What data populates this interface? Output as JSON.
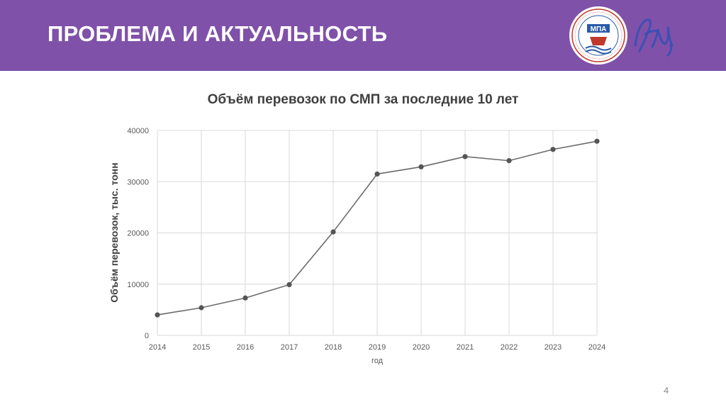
{
  "header": {
    "title": "ПРОБЛЕМА И АКТУАЛЬНОСТЬ",
    "logo_text": "МПА",
    "colors": {
      "background": "#7f51a8",
      "title": "#ffffff"
    }
  },
  "page_number": "4",
  "chart_data": {
    "type": "line",
    "title": "Объём перевозок по СМП за последние 10 лет",
    "xlabel": "год",
    "ylabel": "Объём перевозок, тыс. тонн",
    "categories": [
      "2014",
      "2015",
      "2016",
      "2017",
      "2018",
      "2019",
      "2020",
      "2021",
      "2022",
      "2023",
      "2024"
    ],
    "series": [
      {
        "values": [
          4000,
          5400,
          7300,
          9900,
          20200,
          31500,
          32900,
          34900,
          34100,
          36300,
          37900
        ]
      }
    ],
    "ylim": [
      0,
      40000
    ],
    "yticks": [
      "0",
      "10000",
      "20000",
      "30000",
      "40000"
    ],
    "grid": true,
    "legend": "none",
    "colors": {
      "line": "#6b6b6b",
      "marker": "#555555",
      "grid": "#d9d9d9"
    }
  }
}
